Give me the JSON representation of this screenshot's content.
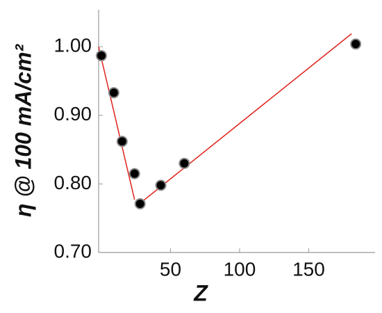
{
  "chart_data": {
    "type": "scatter",
    "xlabel": "Z",
    "ylabel": "η @ 100 mA/cm²",
    "xlim": [
      -2,
      198
    ],
    "xticks": [
      50,
      100,
      150
    ],
    "ylim": [
      0.7,
      1.054
    ],
    "yticks": [
      {
        "value": 0.7,
        "label": "0.70"
      },
      {
        "value": 0.8,
        "label": "0.80"
      },
      {
        "value": 0.9,
        "label": "0.90"
      },
      {
        "value": 1.0,
        "label": "1.00"
      }
    ],
    "series": [
      {
        "color": "#000000",
        "x": [
          0,
          9,
          15,
          24,
          28,
          43,
          60,
          184
        ],
        "values": [
          0.987,
          0.933,
          0.862,
          0.815,
          0.771,
          0.798,
          0.83,
          1.004
        ]
      }
    ],
    "fit_lines": [
      {
        "color": "#e0201b",
        "x": [
          -2,
          24
        ],
        "values": [
          1.0,
          0.777
        ]
      },
      {
        "color": "#e0201b",
        "x": [
          25,
          181
        ],
        "values": [
          0.767,
          1.019
        ]
      }
    ]
  }
}
